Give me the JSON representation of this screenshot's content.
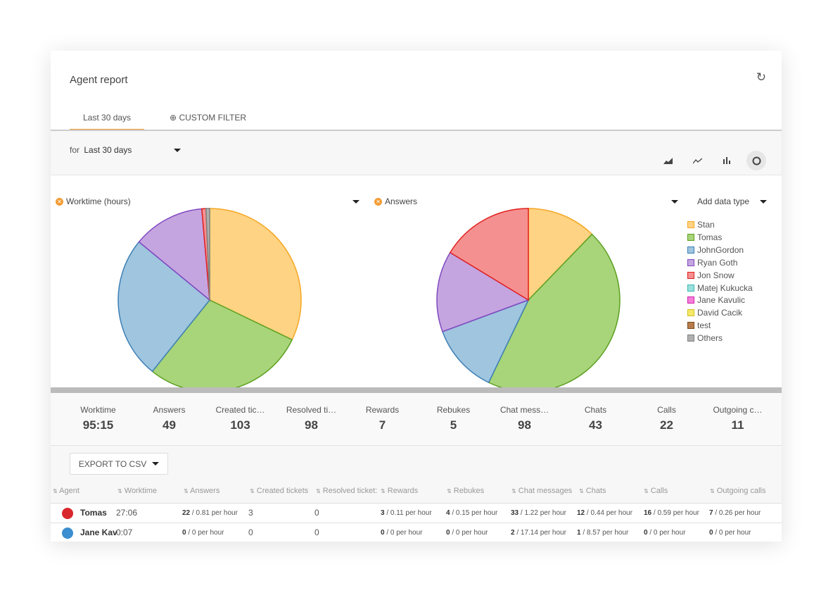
{
  "header": {
    "title": "Agent report",
    "refresh_icon": "refresh-icon"
  },
  "tabs": [
    {
      "label": "Last 30 days",
      "active": true
    },
    {
      "label": "CUSTOM FILTER",
      "icon": "plus-circle-icon"
    }
  ],
  "filter": {
    "prefix": "for",
    "value": "Last 30 days"
  },
  "chart_types": [
    "area-chart-icon",
    "line-chart-icon",
    "bar-chart-icon",
    "pie-chart-icon"
  ],
  "chart_data": [
    {
      "type": "pie",
      "title": "Worktime (hours)",
      "categories": [
        "Stan",
        "Tomas",
        "JohnGordon",
        "Ryan Goth",
        "Jon Snow",
        "Others"
      ],
      "values": [
        30.4,
        27.1,
        23.8,
        12.0,
        0.7,
        0.6
      ]
    },
    {
      "type": "pie",
      "title": "Answers",
      "categories": [
        "Stan",
        "Tomas",
        "JohnGordon",
        "Ryan Goth",
        "Jon Snow"
      ],
      "values": [
        6,
        22,
        6,
        7,
        8
      ]
    }
  ],
  "add_data_type": "Add data type",
  "legend": [
    {
      "name": "Stan",
      "fill": "#fed383",
      "stroke": "#f5a623"
    },
    {
      "name": "Tomas",
      "fill": "#a8d47a",
      "stroke": "#5aa01e"
    },
    {
      "name": "JohnGordon",
      "fill": "#9fc5df",
      "stroke": "#3d7fb5"
    },
    {
      "name": "Ryan Goth",
      "fill": "#c5a5e0",
      "stroke": "#8048c0"
    },
    {
      "name": "Jon Snow",
      "fill": "#f59090",
      "stroke": "#e02020"
    },
    {
      "name": "Matej Kukucka",
      "fill": "#99e0dc",
      "stroke": "#3cb8b0"
    },
    {
      "name": "Jane Kavulic",
      "fill": "#f57fd8",
      "stroke": "#d020a8"
    },
    {
      "name": "David Cacik",
      "fill": "#f5e86a",
      "stroke": "#d4c020"
    },
    {
      "name": "test",
      "fill": "#b87c4c",
      "stroke": "#7a4a20"
    },
    {
      "name": "Others",
      "fill": "#b0b0b0",
      "stroke": "#808080"
    }
  ],
  "stats": [
    {
      "label": "Worktime",
      "value": "95:15"
    },
    {
      "label": "Answers",
      "value": "49"
    },
    {
      "label": "Created tic…",
      "value": "103"
    },
    {
      "label": "Resolved ti…",
      "value": "98"
    },
    {
      "label": "Rewards",
      "value": "7"
    },
    {
      "label": "Rebukes",
      "value": "5"
    },
    {
      "label": "Chat mess…",
      "value": "98"
    },
    {
      "label": "Chats",
      "value": "43"
    },
    {
      "label": "Calls",
      "value": "22"
    },
    {
      "label": "Outgoing c…",
      "value": "11"
    }
  ],
  "export_label": "EXPORT TO CSV",
  "table": {
    "columns": [
      "Agent",
      "Worktime",
      "Answers",
      "Created tickets",
      "Resolved ticket:",
      "Rewards",
      "Rebukes",
      "Chat messages",
      "Chats",
      "Calls",
      "Outgoing calls"
    ],
    "rows": [
      {
        "agent": "Tomas",
        "worktime": "27:06",
        "answers": [
          "22",
          "/ 0.81 per hour"
        ],
        "created": "3",
        "resolved": "0",
        "rewards": [
          "3",
          "/ 0.11 per hour"
        ],
        "rebukes": [
          "4",
          "/ 0.15 per hour"
        ],
        "chat_messages": [
          "33",
          "/ 1.22 per hour"
        ],
        "chats": [
          "12",
          "/ 0.44 per hour"
        ],
        "calls": [
          "16",
          "/ 0.59 per hour"
        ],
        "outgoing": [
          "7",
          "/ 0.26 per hour"
        ]
      },
      {
        "agent": "Jane Kav",
        "worktime": "0:07",
        "answers": [
          "0",
          "/ 0 per hour"
        ],
        "created": "0",
        "resolved": "0",
        "rewards": [
          "0",
          "/ 0 per hour"
        ],
        "rebukes": [
          "0",
          "/ 0 per hour"
        ],
        "chat_messages": [
          "2",
          "/ 17.14 per hour"
        ],
        "chats": [
          "1",
          "/ 8.57 per hour"
        ],
        "calls": [
          "0",
          "/ 0 per hour"
        ],
        "outgoing": [
          "0",
          "/ 0 per hour"
        ]
      }
    ]
  }
}
